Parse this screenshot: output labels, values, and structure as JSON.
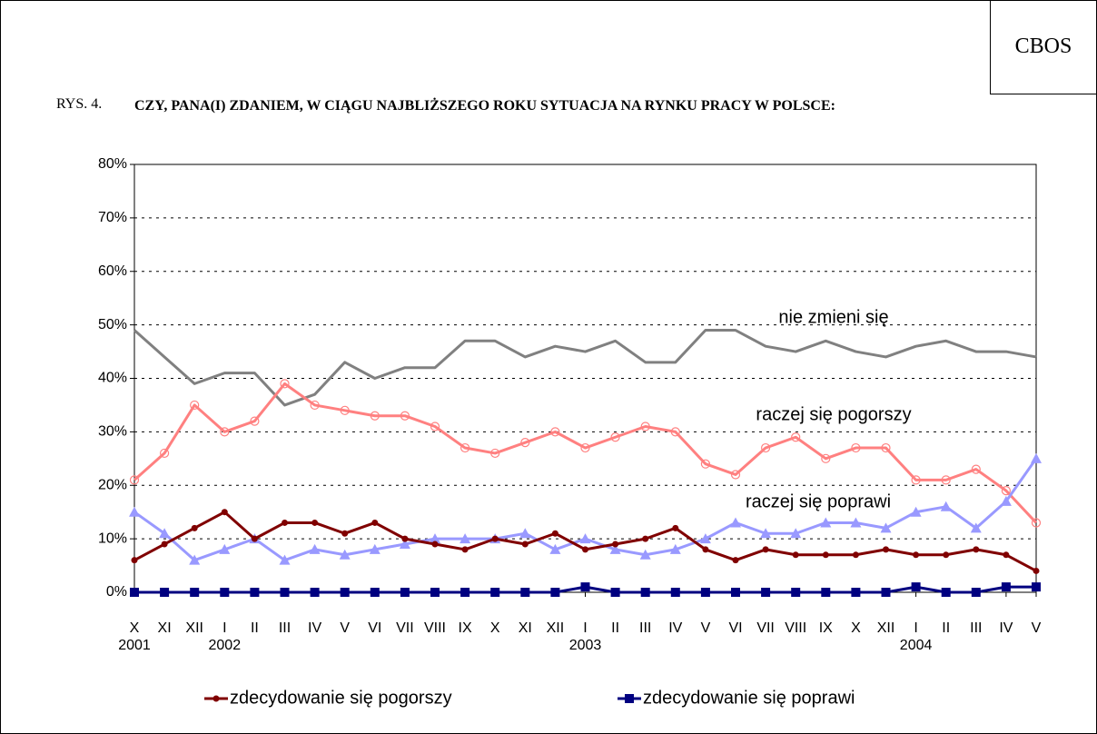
{
  "chart_data": {
    "type": "line",
    "source": "CBOS",
    "figure_label": "RYS. 4.",
    "title": "CZY, PANA(I) ZDANIEM, W CIĄGU NAJBLIŻSZEGO ROKU SYTUACJA NA RYNKU PRACY W POLSCE:",
    "categories": [
      "X",
      "XI",
      "XII",
      "I",
      "II",
      "III",
      "IV",
      "V",
      "VI",
      "VII",
      "VIII",
      "IX",
      "X",
      "XI",
      "XII",
      "I",
      "II",
      "III",
      "IV",
      "V",
      "VI",
      "VII",
      "VIII",
      "IX",
      "X",
      "XII",
      "I",
      "II",
      "III",
      "IV",
      "V"
    ],
    "category_years": [
      "2001",
      null,
      null,
      "2002",
      null,
      null,
      null,
      null,
      null,
      null,
      null,
      null,
      null,
      null,
      null,
      "2003",
      null,
      null,
      null,
      null,
      null,
      null,
      null,
      null,
      null,
      null,
      "2004",
      null,
      null,
      null,
      null
    ],
    "ylim": [
      0,
      80
    ],
    "yticks": [
      {
        "value": 0,
        "label": "0%"
      },
      {
        "value": 10,
        "label": "10%"
      },
      {
        "value": 20,
        "label": "20%"
      },
      {
        "value": 30,
        "label": "30%"
      },
      {
        "value": 40,
        "label": "40%"
      },
      {
        "value": 50,
        "label": "50%"
      },
      {
        "value": 60,
        "label": "60%"
      },
      {
        "value": 70,
        "label": "70%"
      },
      {
        "value": 80,
        "label": "80%"
      }
    ],
    "grid": true,
    "series": [
      {
        "name": "nie zmieni się",
        "color": "#808080",
        "marker": "none",
        "legend": false,
        "values": [
          49,
          44,
          39,
          41,
          41,
          35,
          37,
          43,
          40,
          42,
          42,
          47,
          47,
          44,
          46,
          45,
          47,
          43,
          43,
          49,
          49,
          46,
          45,
          47,
          45,
          44,
          46,
          47,
          45,
          45,
          44
        ]
      },
      {
        "name": "raczej się pogorszy",
        "color": "#ff8080",
        "marker": "open-circle",
        "legend": false,
        "values": [
          21,
          26,
          35,
          30,
          32,
          39,
          35,
          34,
          33,
          33,
          31,
          27,
          26,
          28,
          30,
          27,
          29,
          31,
          30,
          24,
          22,
          27,
          29,
          25,
          27,
          27,
          21,
          21,
          23,
          19,
          13
        ]
      },
      {
        "name": "raczej się poprawi",
        "color": "#9999ff",
        "marker": "triangle",
        "legend": false,
        "values": [
          15,
          11,
          6,
          8,
          10,
          6,
          8,
          7,
          8,
          9,
          10,
          10,
          10,
          11,
          8,
          10,
          8,
          7,
          8,
          10,
          13,
          11,
          11,
          13,
          13,
          12,
          15,
          16,
          12,
          17,
          25
        ]
      },
      {
        "name": "zdecydowanie się pogorszy",
        "color": "#800000",
        "marker": "circle",
        "legend": true,
        "values": [
          6,
          9,
          12,
          15,
          10,
          13,
          13,
          11,
          13,
          10,
          9,
          8,
          10,
          9,
          11,
          8,
          9,
          10,
          12,
          8,
          6,
          8,
          7,
          7,
          7,
          8,
          7,
          7,
          8,
          7,
          4
        ]
      },
      {
        "name": "zdecydowanie się poprawi",
        "color": "#000080",
        "marker": "square",
        "legend": true,
        "values": [
          0,
          0,
          0,
          0,
          0,
          0,
          0,
          0,
          0,
          0,
          0,
          0,
          0,
          0,
          0,
          1,
          0,
          0,
          0,
          0,
          0,
          0,
          0,
          0,
          0,
          0,
          1,
          0,
          0,
          1,
          1
        ]
      }
    ]
  }
}
